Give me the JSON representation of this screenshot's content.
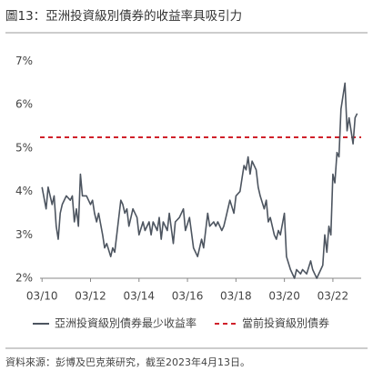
{
  "chart_data": {
    "type": "line",
    "title": "圖13：亞洲投資級別債券的收益率具吸引力",
    "source": "資料來源：彭博及巴克萊研究，截至2023年4月13日。",
    "x": [
      "2010-03",
      "2010-05",
      "2010-06",
      "2010-08",
      "2010-09",
      "2010-10",
      "2010-11",
      "2010-12",
      "2011-01",
      "2011-03",
      "2011-05",
      "2011-06",
      "2011-07",
      "2011-08",
      "2011-09",
      "2011-10",
      "2011-11",
      "2012-01",
      "2012-03",
      "2012-04",
      "2012-05",
      "2012-06",
      "2012-07",
      "2012-09",
      "2012-10",
      "2012-11",
      "2013-01",
      "2013-02",
      "2013-03",
      "2013-06",
      "2013-07",
      "2013-08",
      "2013-09",
      "2013-10",
      "2013-12",
      "2014-02",
      "2014-03",
      "2014-05",
      "2014-06",
      "2014-08",
      "2014-09",
      "2014-10",
      "2014-12",
      "2015-01",
      "2015-02",
      "2015-03",
      "2015-05",
      "2015-06",
      "2015-08",
      "2015-09",
      "2015-11",
      "2016-01",
      "2016-02",
      "2016-04",
      "2016-06",
      "2016-08",
      "2016-09",
      "2016-10",
      "2016-11",
      "2017-01",
      "2017-02",
      "2017-04",
      "2017-05",
      "2017-06",
      "2017-08",
      "2017-09",
      "2017-10",
      "2017-12",
      "2018-02",
      "2018-03",
      "2018-05",
      "2018-06",
      "2018-07",
      "2018-08",
      "2018-09",
      "2018-10",
      "2018-11",
      "2019-01",
      "2019-02",
      "2019-03",
      "2019-05",
      "2019-06",
      "2019-07",
      "2019-08",
      "2019-10",
      "2019-11",
      "2019-12",
      "2020-01",
      "2020-03",
      "2020-04",
      "2020-06",
      "2020-08",
      "2020-09",
      "2020-11",
      "2020-12",
      "2021-02",
      "2021-04",
      "2021-05",
      "2021-06",
      "2021-07",
      "2021-09",
      "2021-10",
      "2021-11",
      "2021-12",
      "2022-01",
      "2022-02",
      "2022-03",
      "2022-04",
      "2022-05",
      "2022-06",
      "2022-07",
      "2022-09",
      "2022-10",
      "2022-11",
      "2023-01",
      "2023-02",
      "2023-03"
    ],
    "series": [
      {
        "name": "亞洲投資級別債券最少收益率",
        "color": "#4d5560",
        "values": [
          4.1,
          3.6,
          4.1,
          3.7,
          3.9,
          3.2,
          2.9,
          3.5,
          3.7,
          3.9,
          3.8,
          3.9,
          3.3,
          3.6,
          3.2,
          4.4,
          3.9,
          3.9,
          3.7,
          3.8,
          3.5,
          3.3,
          3.5,
          3.0,
          2.7,
          2.8,
          2.5,
          2.7,
          2.6,
          3.8,
          3.7,
          3.5,
          3.6,
          3.2,
          3.6,
          3.4,
          3.0,
          3.3,
          3.1,
          3.3,
          3.0,
          3.3,
          3.1,
          3.4,
          2.9,
          3.3,
          3.1,
          3.5,
          2.8,
          3.3,
          3.4,
          3.6,
          3.1,
          3.4,
          2.7,
          2.5,
          2.7,
          2.9,
          2.7,
          3.5,
          3.2,
          3.3,
          3.2,
          3.3,
          3.1,
          3.2,
          3.4,
          3.8,
          3.5,
          3.9,
          4.0,
          4.3,
          4.6,
          4.5,
          4.8,
          4.4,
          4.7,
          4.5,
          4.1,
          3.9,
          3.6,
          3.8,
          3.3,
          3.4,
          3.0,
          2.9,
          3.1,
          3.0,
          3.5,
          2.5,
          2.2,
          2.0,
          2.2,
          2.1,
          2.2,
          2.1,
          2.4,
          2.2,
          2.1,
          2.0,
          2.2,
          2.3,
          3.0,
          2.6,
          3.2,
          3.0,
          4.4,
          4.2,
          4.9,
          4.8,
          5.9,
          6.5,
          5.4,
          5.7,
          5.1,
          5.7,
          5.8
        ]
      }
    ],
    "reference_line": {
      "name": "當前投資級別債券",
      "value": 5.25,
      "color": "#d0202a"
    },
    "xlim": [
      "2010-02",
      "2023-05"
    ],
    "xticks": [
      {
        "value": "2010-03",
        "label": "03/10"
      },
      {
        "value": "2012-03",
        "label": "03/12"
      },
      {
        "value": "2014-03",
        "label": "03/14"
      },
      {
        "value": "2016-03",
        "label": "03/16"
      },
      {
        "value": "2018-03",
        "label": "03/18"
      },
      {
        "value": "2020-03",
        "label": "03/20"
      },
      {
        "value": "2022-03",
        "label": "03/22"
      }
    ],
    "ylim": [
      2,
      7.2
    ],
    "yticks": [
      {
        "value": 2,
        "label": "2%"
      },
      {
        "value": 3,
        "label": "3%"
      },
      {
        "value": 4,
        "label": "4%"
      },
      {
        "value": 5,
        "label": "5%"
      },
      {
        "value": 6,
        "label": "6%"
      },
      {
        "value": 7,
        "label": "7%"
      }
    ],
    "grid": false
  }
}
